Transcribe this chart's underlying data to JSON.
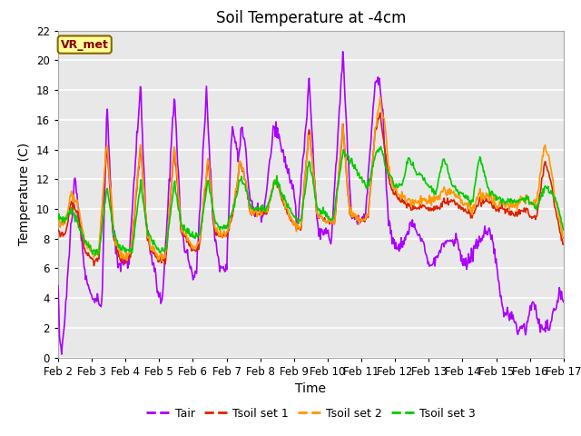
{
  "title": "Soil Temperature at -4cm",
  "xlabel": "Time",
  "ylabel": "Temperature (C)",
  "ylim": [
    0,
    22
  ],
  "x_tick_labels": [
    "Feb 2",
    "Feb 3",
    "Feb 4",
    "Feb 5",
    "Feb 6",
    "Feb 7",
    "Feb 8",
    "Feb 9",
    "Feb 10",
    "Feb 11",
    "Feb 12",
    "Feb 13",
    "Feb 14",
    "Feb 15",
    "Feb 16",
    "Feb 17"
  ],
  "fig_bg_color": "#ffffff",
  "plot_bg_color": "#e8e8e8",
  "grid_color": "#ffffff",
  "tair_color": "#aa00ff",
  "tsoil1_color": "#dd2200",
  "tsoil2_color": "#ff9900",
  "tsoil3_color": "#00cc00",
  "annotation_text": "VR_met",
  "annotation_facecolor": "#ffff99",
  "annotation_edgecolor": "#886600",
  "annotation_textcolor": "#880000",
  "legend_labels": [
    "Tair",
    "Tsoil set 1",
    "Tsoil set 2",
    "Tsoil set 3"
  ],
  "title_fontsize": 12,
  "axis_label_fontsize": 10,
  "tick_fontsize": 8.5
}
